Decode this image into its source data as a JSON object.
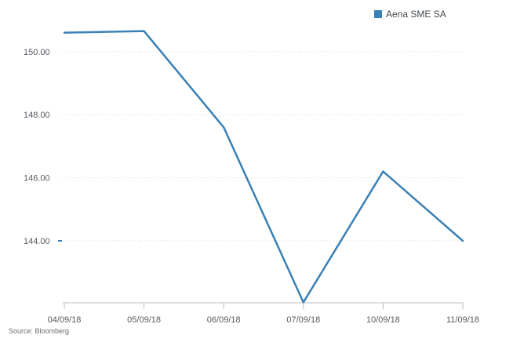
{
  "chart_data": {
    "type": "line",
    "x": [
      "04/09/18",
      "05/09/18",
      "06/09/18",
      "07/09/18",
      "10/09/18",
      "11/09/18"
    ],
    "series": [
      {
        "name": "Aena SME SA",
        "values": [
          150.6,
          150.65,
          147.6,
          142.05,
          146.2,
          144.0
        ]
      }
    ],
    "yticks": [
      "150.00",
      "148.00",
      "146.00",
      "144.00"
    ],
    "ytick_values": [
      150,
      148,
      146,
      144
    ],
    "ylim": [
      142.05,
      151.8
    ],
    "grid": "horizontal dotted",
    "legend": "top-right",
    "line_color": "#3a80b5",
    "axis_color": "#b9bcc0",
    "source": "Source: Bloomberg"
  }
}
